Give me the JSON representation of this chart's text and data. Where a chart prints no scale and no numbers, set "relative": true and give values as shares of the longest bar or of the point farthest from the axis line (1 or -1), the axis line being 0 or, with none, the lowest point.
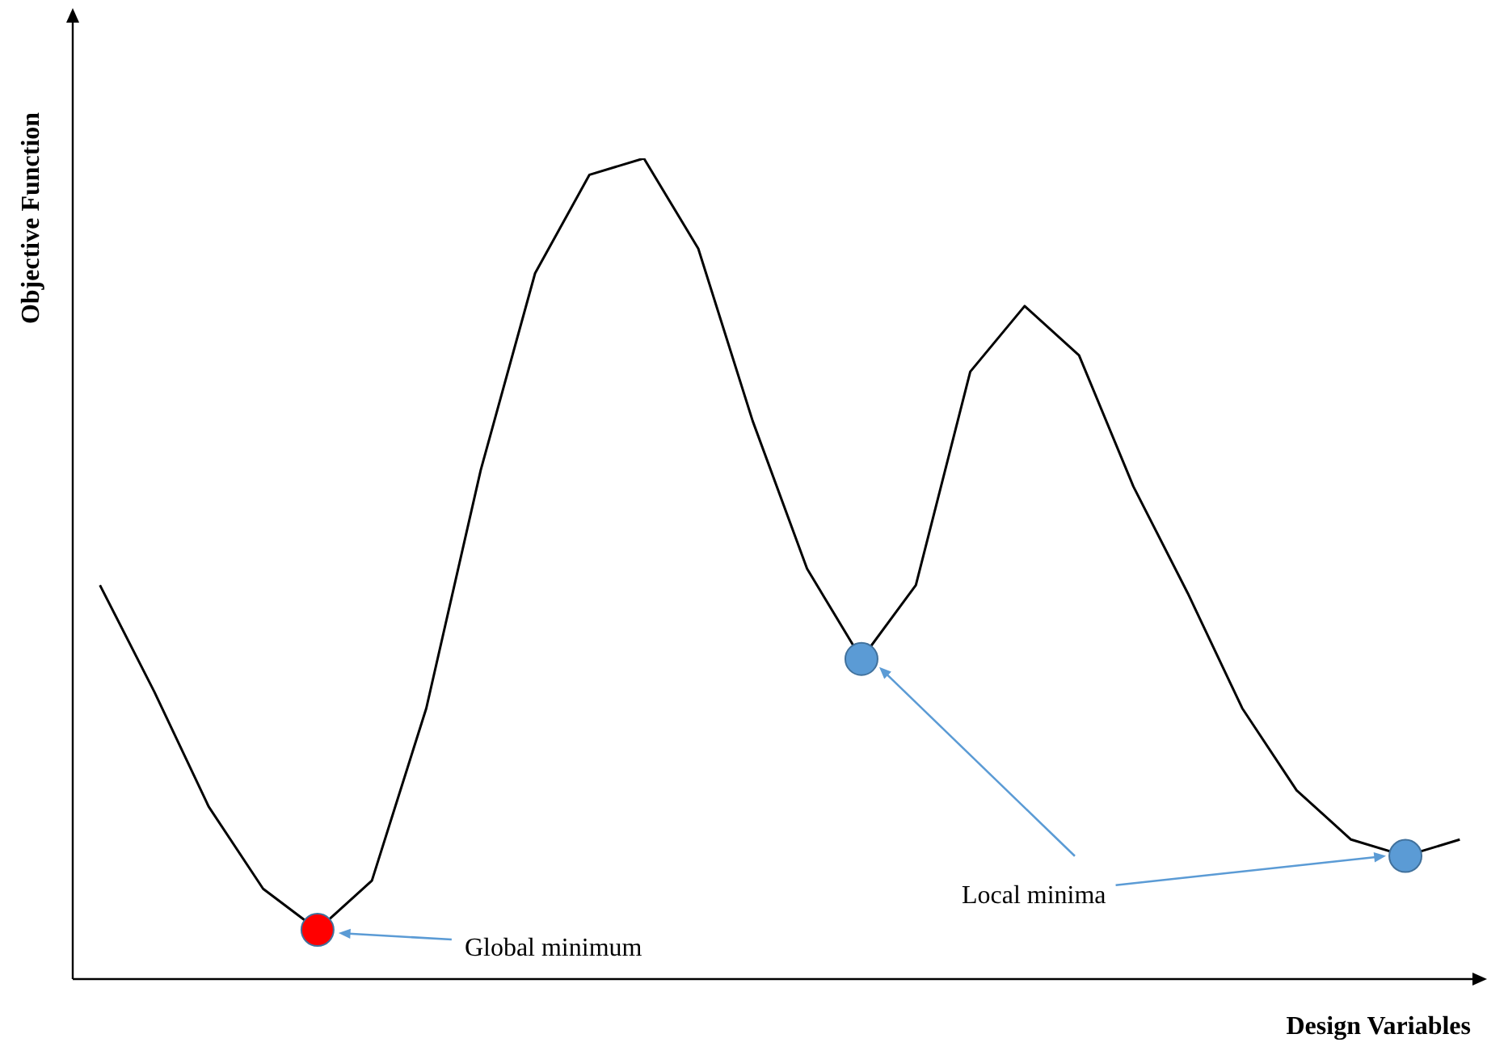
{
  "chart_data": {
    "type": "line",
    "relative": true,
    "xlabel": "Design Variables",
    "ylabel": "Objective Function",
    "legend": false,
    "categories": [
      null,
      null,
      null,
      null,
      null,
      null,
      null,
      null,
      null,
      null,
      null,
      null,
      null,
      null,
      null,
      null,
      null,
      null,
      null,
      null,
      null,
      null,
      null,
      null,
      null,
      null
    ],
    "series": [
      {
        "color": "#000000",
        "values": [
          0.48,
          0.35,
          0.21,
          0.11,
          0.06,
          0.12,
          0.33,
          0.62,
          0.86,
          0.98,
          1,
          0.89,
          0.68,
          0.5,
          0.39,
          0.48,
          0.74,
          0.82,
          0.76,
          0.6,
          0.47,
          0.33,
          0.23,
          0.17,
          0.15,
          0.17
        ],
        "colors": [
          null,
          null,
          null,
          null,
          "#ff0000",
          null,
          null,
          null,
          null,
          null,
          null,
          null,
          null,
          null,
          "#5b9bd5",
          null,
          null,
          null,
          null,
          null,
          null,
          null,
          null,
          null,
          "#5b9bd5",
          null
        ]
      }
    ],
    "annotations": [
      "Global minimum",
      "Local minima"
    ]
  }
}
